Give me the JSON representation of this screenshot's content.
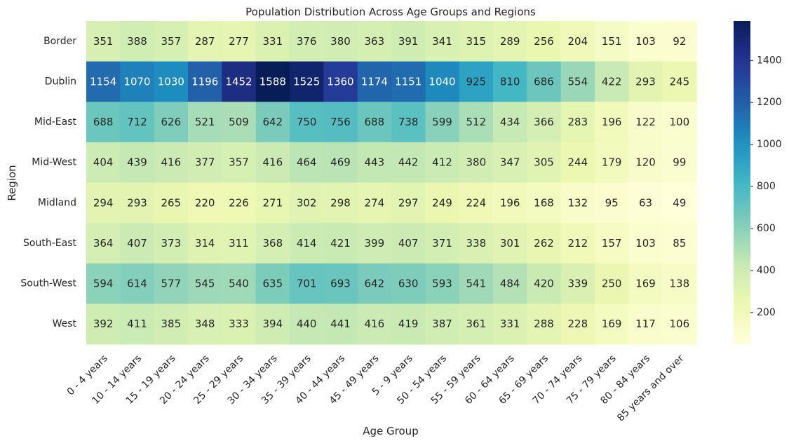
{
  "chart_data": {
    "type": "heatmap",
    "title": "Population Distribution Across Age Groups and Regions",
    "xlabel": "Age Group",
    "ylabel": "Region",
    "x_categories": [
      "0 - 4 years",
      "10 - 14 years",
      "15 - 19 years",
      "20 - 24 years",
      "25 - 29 years",
      "30 - 34 years",
      "35 - 39 years",
      "40 - 44 years",
      "45 - 49 years",
      "5 - 9 years",
      "50 - 54 years",
      "55 - 59 years",
      "60 - 64 years",
      "65 - 69 years",
      "70 - 74 years",
      "75 - 79 years",
      "80 - 84 years",
      "85 years and over"
    ],
    "y_categories": [
      "Border",
      "Dublin",
      "Mid-East",
      "Mid-West",
      "Midland",
      "South-East",
      "South-West",
      "West"
    ],
    "values": [
      [
        351,
        388,
        357,
        287,
        277,
        331,
        376,
        380,
        363,
        391,
        341,
        315,
        289,
        256,
        204,
        151,
        103,
        92
      ],
      [
        1154,
        1070,
        1030,
        1196,
        1452,
        1588,
        1525,
        1360,
        1174,
        1151,
        1040,
        925,
        810,
        686,
        554,
        422,
        293,
        245
      ],
      [
        688,
        712,
        626,
        521,
        509,
        642,
        750,
        756,
        688,
        738,
        599,
        512,
        434,
        366,
        283,
        196,
        122,
        100
      ],
      [
        404,
        439,
        416,
        377,
        357,
        416,
        464,
        469,
        443,
        442,
        412,
        380,
        347,
        305,
        244,
        179,
        120,
        99
      ],
      [
        294,
        293,
        265,
        220,
        226,
        271,
        302,
        298,
        274,
        297,
        249,
        224,
        196,
        168,
        132,
        95,
        63,
        49
      ],
      [
        364,
        407,
        373,
        314,
        311,
        368,
        414,
        421,
        399,
        407,
        371,
        338,
        301,
        262,
        212,
        157,
        103,
        85
      ],
      [
        594,
        614,
        577,
        545,
        540,
        635,
        701,
        693,
        642,
        630,
        593,
        541,
        484,
        420,
        339,
        250,
        169,
        138
      ],
      [
        392,
        411,
        385,
        348,
        333,
        394,
        440,
        441,
        416,
        419,
        387,
        361,
        331,
        288,
        228,
        169,
        117,
        106
      ]
    ],
    "annotated": true,
    "colormap": "YlGnBu",
    "colorbar": {
      "vmin": 49,
      "vmax": 1588,
      "ticks": [
        200,
        400,
        600,
        800,
        1000,
        1200,
        1400
      ]
    }
  }
}
